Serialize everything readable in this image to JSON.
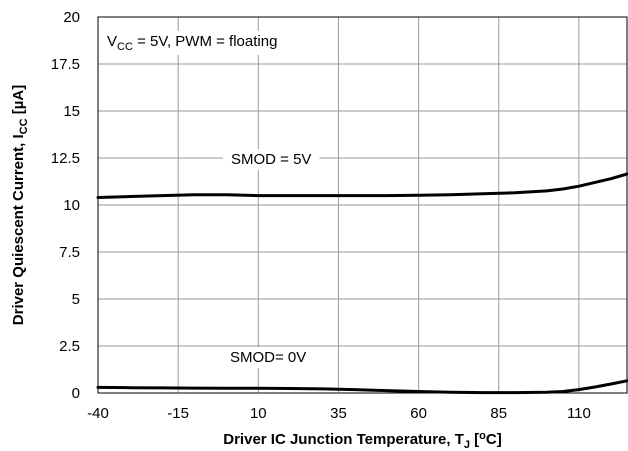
{
  "chart_data": {
    "type": "line",
    "title": "",
    "xlabel": {
      "pre": "Driver IC Junction Temperature, T",
      "sub": "J",
      "mid": " [",
      "sup": "o",
      "post": "C]"
    },
    "ylabel": {
      "pre": "Driver Quiescent Current, I",
      "sub": "CC",
      "post": " [µA]"
    },
    "xlim": [
      -40,
      125
    ],
    "ylim": [
      0,
      20
    ],
    "xticks": [
      -40,
      -15,
      10,
      35,
      60,
      85,
      110
    ],
    "xtick_labels": [
      "-40",
      "-15",
      "10",
      "35",
      "60",
      "85",
      "110"
    ],
    "yticks": [
      0,
      2.5,
      5,
      7.5,
      10,
      12.5,
      15,
      17.5,
      20
    ],
    "ytick_labels": [
      "0",
      "2.5",
      "5",
      "7.5",
      "10",
      "12.5",
      "15",
      "17.5",
      "20"
    ],
    "grid": true,
    "condition": {
      "pre": "V",
      "sub": "CC",
      "post": " = 5V, PWM = floating"
    },
    "series": [
      {
        "name": "SMOD = 5V",
        "x": [
          -40,
          -30,
          -20,
          -10,
          0,
          10,
          20,
          30,
          40,
          50,
          60,
          70,
          80,
          90,
          100,
          105,
          110,
          115,
          120,
          125
        ],
        "y": [
          10.4,
          10.45,
          10.5,
          10.55,
          10.55,
          10.5,
          10.5,
          10.5,
          10.5,
          10.5,
          10.52,
          10.55,
          10.6,
          10.65,
          10.75,
          10.85,
          11.0,
          11.2,
          11.4,
          11.65
        ]
      },
      {
        "name": "SMOD= 0V",
        "x": [
          -40,
          -30,
          -20,
          -10,
          0,
          10,
          20,
          30,
          40,
          50,
          60,
          70,
          80,
          90,
          100,
          105,
          110,
          115,
          120,
          125
        ],
        "y": [
          0.3,
          0.28,
          0.27,
          0.26,
          0.25,
          0.25,
          0.24,
          0.22,
          0.18,
          0.13,
          0.08,
          0.04,
          0.02,
          0.02,
          0.04,
          0.08,
          0.18,
          0.32,
          0.48,
          0.65
        ]
      }
    ]
  }
}
